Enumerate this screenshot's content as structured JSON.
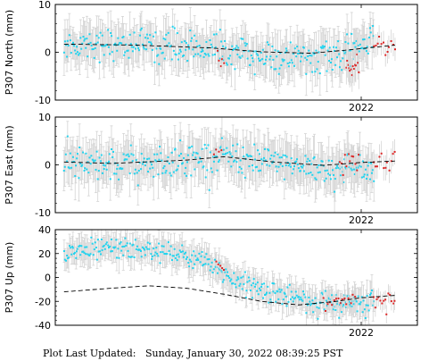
{
  "chart_data": [
    {
      "type": "scatter",
      "ylabel": "P307 North (mm)",
      "ylim": [
        -10,
        10
      ],
      "yticks": [
        -10,
        0,
        10
      ],
      "xlim": [
        2019.55,
        2022.45
      ],
      "xticks": [
        {
          "value": 2022.0,
          "label": "2022"
        }
      ],
      "series": [
        {
          "role": "daily",
          "color": "#22d3ee",
          "keypoints": [
            [
              2019.62,
              1.6
            ],
            [
              2020.0,
              1.8
            ],
            [
              2020.4,
              1.4
            ],
            [
              2020.8,
              0.9
            ],
            [
              2021.0,
              -0.3
            ],
            [
              2021.3,
              -1.2
            ],
            [
              2021.6,
              -1.1
            ],
            [
              2021.85,
              -1.0
            ],
            [
              2022.0,
              1.0
            ],
            [
              2022.1,
              4.0
            ]
          ],
          "scatter": 1.6
        },
        {
          "role": "rapid",
          "color": "#dc2626",
          "segments": [
            {
              "x": [
                2020.85,
                2020.9
              ],
              "y": [
                -1.5,
                -1.5
              ],
              "n": 5,
              "scatter": 1.0
            },
            {
              "x": [
                2021.88,
                2021.98
              ],
              "y": [
                -2.5,
                -3.5
              ],
              "n": 14,
              "scatter": 1.6
            },
            {
              "x": [
                2022.1,
                2022.27
              ],
              "y": [
                2.0,
                1.5
              ],
              "n": 12,
              "scatter": 1.1
            }
          ]
        },
        {
          "role": "model",
          "color": "#000000",
          "keypoints": [
            [
              2019.62,
              1.7
            ],
            [
              2020.2,
              1.5
            ],
            [
              2020.8,
              0.9
            ],
            [
              2021.2,
              0.1
            ],
            [
              2021.6,
              -0.2
            ],
            [
              2021.9,
              0.5
            ],
            [
              2022.27,
              1.5
            ]
          ]
        }
      ]
    },
    {
      "type": "scatter",
      "ylabel": "P307 East (mm)",
      "ylim": [
        -10,
        10
      ],
      "yticks": [
        -10,
        0,
        10
      ],
      "xlim": [
        2019.55,
        2022.45
      ],
      "xticks": [
        {
          "value": 2022.0,
          "label": "2022"
        }
      ],
      "series": [
        {
          "role": "daily",
          "color": "#22d3ee",
          "keypoints": [
            [
              2019.62,
              0.5
            ],
            [
              2019.9,
              -0.5
            ],
            [
              2020.2,
              0.0
            ],
            [
              2020.6,
              1.2
            ],
            [
              2020.9,
              1.8
            ],
            [
              2021.2,
              0.6
            ],
            [
              2021.5,
              -0.3
            ],
            [
              2021.8,
              -0.8
            ],
            [
              2022.0,
              -1.0
            ],
            [
              2022.1,
              -1.0
            ]
          ],
          "scatter": 1.7
        },
        {
          "role": "rapid",
          "color": "#dc2626",
          "segments": [
            {
              "x": [
                2020.82,
                2020.88
              ],
              "y": [
                3.0,
                2.5
              ],
              "n": 4,
              "scatter": 0.6
            },
            {
              "x": [
                2021.83,
                2021.98
              ],
              "y": [
                0.5,
                1.0
              ],
              "n": 12,
              "scatter": 1.1
            },
            {
              "x": [
                2022.1,
                2022.27
              ],
              "y": [
                1.0,
                1.2
              ],
              "n": 12,
              "scatter": 1.2
            }
          ]
        },
        {
          "role": "model",
          "color": "#000000",
          "keypoints": [
            [
              2019.62,
              0.6
            ],
            [
              2020.0,
              0.3
            ],
            [
              2020.6,
              1.0
            ],
            [
              2020.9,
              1.7
            ],
            [
              2021.3,
              0.6
            ],
            [
              2021.7,
              -0.1
            ],
            [
              2022.0,
              0.5
            ],
            [
              2022.27,
              0.8
            ]
          ]
        }
      ]
    },
    {
      "type": "scatter",
      "ylabel": "P307 Up (mm)",
      "ylim": [
        -40,
        40
      ],
      "yticks": [
        -40,
        -20,
        0,
        20,
        40
      ],
      "xlim": [
        2019.55,
        2022.45
      ],
      "xticks": [
        {
          "value": 2022.0,
          "label": "2022"
        }
      ],
      "series": [
        {
          "role": "daily",
          "color": "#22d3ee",
          "keypoints": [
            [
              2019.62,
              20
            ],
            [
              2020.0,
              25
            ],
            [
              2020.4,
              22
            ],
            [
              2020.75,
              12
            ],
            [
              2020.95,
              0
            ],
            [
              2021.2,
              -10
            ],
            [
              2021.5,
              -18
            ],
            [
              2021.75,
              -22
            ],
            [
              2022.0,
              -22
            ],
            [
              2022.1,
              -20
            ]
          ],
          "scatter": 4.5
        },
        {
          "role": "rapid",
          "color": "#dc2626",
          "segments": [
            {
              "x": [
                2020.84,
                2020.9
              ],
              "y": [
                10,
                5
              ],
              "n": 5,
              "scatter": 2.5
            },
            {
              "x": [
                2021.7,
                2021.95
              ],
              "y": [
                -18,
                -20
              ],
              "n": 16,
              "scatter": 3.5
            },
            {
              "x": [
                2022.1,
                2022.27
              ],
              "y": [
                -18,
                -20
              ],
              "n": 14,
              "scatter": 3.5
            }
          ]
        },
        {
          "role": "model",
          "color": "#000000",
          "keypoints": [
            [
              2019.62,
              -12
            ],
            [
              2020.0,
              -9
            ],
            [
              2020.3,
              -7
            ],
            [
              2020.6,
              -9
            ],
            [
              2020.9,
              -14
            ],
            [
              2021.2,
              -20
            ],
            [
              2021.5,
              -23
            ],
            [
              2021.8,
              -20
            ],
            [
              2022.0,
              -17
            ],
            [
              2022.27,
              -15
            ]
          ]
        }
      ]
    }
  ],
  "footer": "Plot Last Updated:   Sunday, January 30, 2022 08:39:25 PST"
}
